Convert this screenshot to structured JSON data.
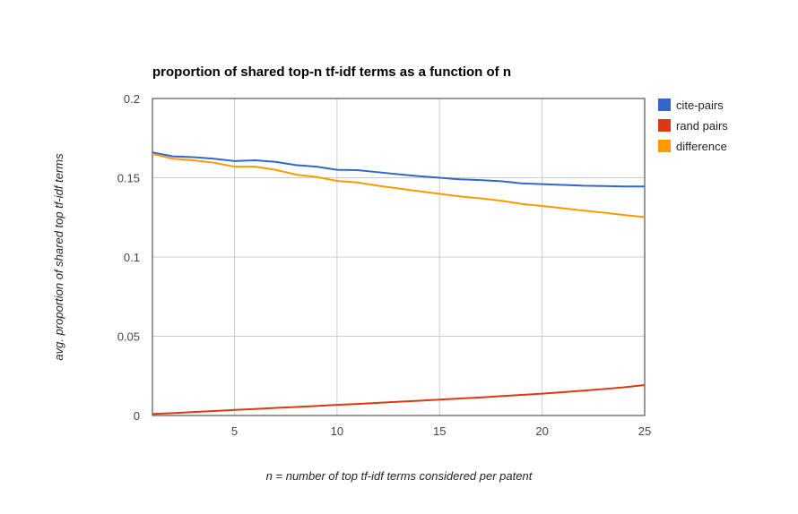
{
  "chart_data": {
    "type": "line",
    "title": "proportion of shared top-n tf-idf terms as a function of n",
    "xlabel": "n = number of top tf-idf terms considered per patent",
    "ylabel": "avg. proportion of shared top tf-idf terms",
    "xlim": [
      1,
      25
    ],
    "ylim": [
      0,
      0.2
    ],
    "x_ticks": [
      "5",
      "10",
      "15",
      "20",
      "25"
    ],
    "y_ticks": [
      "0",
      "0.05",
      "0.1",
      "0.15",
      "0.2"
    ],
    "grid": true,
    "legend_position": "right",
    "x": [
      1,
      2,
      3,
      4,
      5,
      6,
      7,
      8,
      9,
      10,
      11,
      12,
      13,
      14,
      15,
      16,
      17,
      18,
      19,
      20,
      21,
      22,
      23,
      24,
      25
    ],
    "series": [
      {
        "name": "cite-pairs",
        "color": "#3366cc",
        "values": [
          0.166,
          0.1635,
          0.163,
          0.162,
          0.1605,
          0.161,
          0.16,
          0.158,
          0.157,
          0.155,
          0.1548,
          0.1535,
          0.1522,
          0.151,
          0.15,
          0.149,
          0.1485,
          0.1478,
          0.1465,
          0.146,
          0.1455,
          0.145,
          0.1448,
          0.1445,
          0.1445
        ]
      },
      {
        "name": "rand pairs",
        "color": "#dc3912",
        "values": [
          0.001,
          0.0015,
          0.0022,
          0.0028,
          0.0035,
          0.0041,
          0.0048,
          0.0054,
          0.006,
          0.0067,
          0.0073,
          0.008,
          0.0087,
          0.0093,
          0.01,
          0.0107,
          0.0114,
          0.0122,
          0.013,
          0.0138,
          0.0147,
          0.0157,
          0.0167,
          0.0178,
          0.0192
        ]
      },
      {
        "name": "difference",
        "color": "#ff9900",
        "values": [
          0.165,
          0.162,
          0.161,
          0.1595,
          0.157,
          0.157,
          0.155,
          0.152,
          0.1505,
          0.148,
          0.147,
          0.145,
          0.1432,
          0.1415,
          0.1398,
          0.1382,
          0.137,
          0.1355,
          0.1335,
          0.1322,
          0.1308,
          0.1293,
          0.128,
          0.1265,
          0.1252
        ]
      }
    ]
  }
}
